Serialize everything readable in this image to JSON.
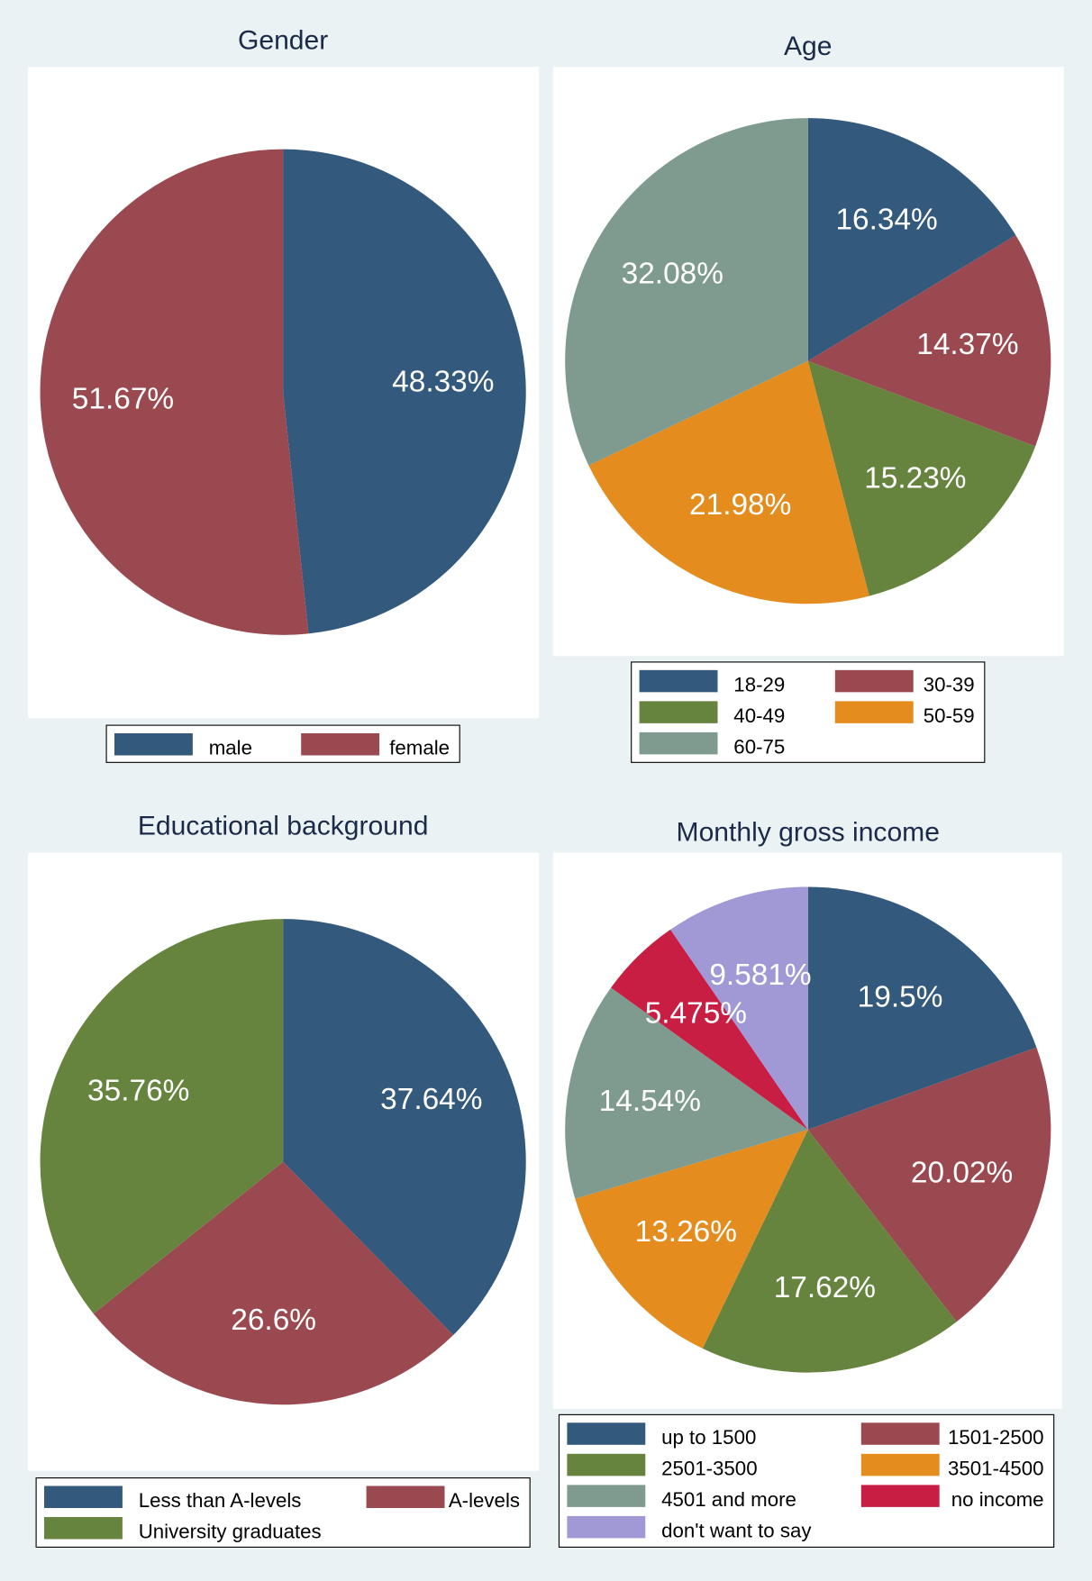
{
  "chart_data": [
    {
      "type": "pie",
      "title": "Gender",
      "categories": [
        "male",
        "female"
      ],
      "values": [
        48.33,
        51.67
      ],
      "value_labels": [
        "48.33%",
        "51.67%"
      ],
      "colors": [
        "#33597c",
        "#9b4950"
      ]
    },
    {
      "type": "pie",
      "title": "Age",
      "categories": [
        "18-29",
        "30-39",
        "40-49",
        "50-59",
        "60-75"
      ],
      "values": [
        16.34,
        14.37,
        15.23,
        21.98,
        32.08
      ],
      "value_labels": [
        "16.34%",
        "14.37%",
        "15.23%",
        "21.98%",
        "32.08%"
      ],
      "colors": [
        "#33597c",
        "#9b4950",
        "#67843f",
        "#e48c1d",
        "#7f9b8f"
      ]
    },
    {
      "type": "pie",
      "title": "Educational background",
      "categories": [
        "Less than A-levels",
        "A-levels",
        "University graduates"
      ],
      "values": [
        37.64,
        26.6,
        35.76
      ],
      "value_labels": [
        "37.64%",
        "26.6%",
        "35.76%"
      ],
      "colors": [
        "#33597c",
        "#9b4950",
        "#67843f"
      ]
    },
    {
      "type": "pie",
      "title": "Monthly gross income",
      "categories": [
        "up to 1500",
        "1501-2500",
        "2501-3500",
        "3501-4500",
        "4501 and more",
        "no income",
        "don't want to say"
      ],
      "values": [
        19.5,
        20.02,
        17.62,
        13.26,
        14.54,
        5.475,
        9.581
      ],
      "value_labels": [
        "19.5%",
        "20.02%",
        "17.62%",
        "13.26%",
        "14.54%",
        "5.475%",
        "9.581%"
      ],
      "colors": [
        "#33597c",
        "#9b4950",
        "#67843f",
        "#e48c1d",
        "#7f9b8f",
        "#c81e44",
        "#a099d5"
      ]
    }
  ]
}
